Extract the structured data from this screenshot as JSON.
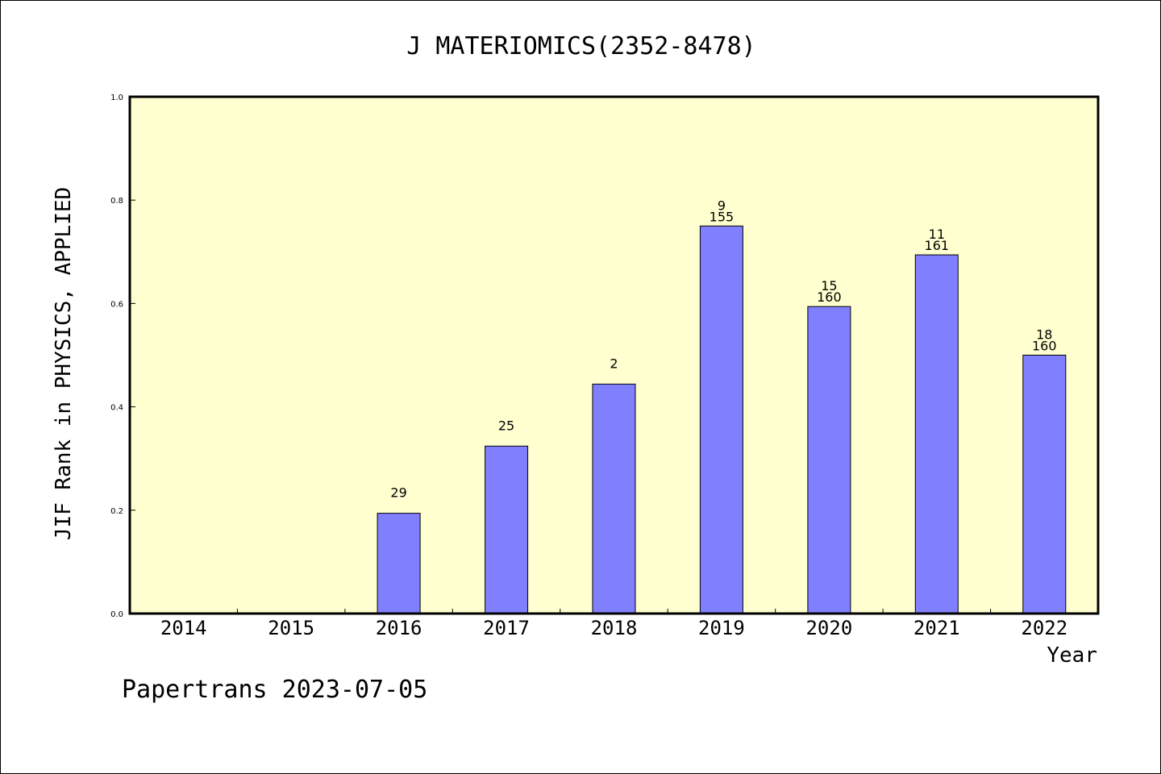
{
  "chart_data": {
    "type": "bar",
    "title": "J MATERIOMICS(2352-8478)",
    "xlabel": "Year",
    "ylabel": "JIF Rank in PHYSICS, APPLIED",
    "ylim": [
      0,
      1.0
    ],
    "yticks": [
      "0.0",
      "0.2",
      "0.4",
      "0.6",
      "0.8",
      "1.0"
    ],
    "categories": [
      "2014",
      "2015",
      "2016",
      "2017",
      "2018",
      "2019",
      "2020",
      "2021",
      "2022"
    ],
    "values": [
      null,
      null,
      0.194,
      0.324,
      0.444,
      0.75,
      0.594,
      0.694,
      0.5
    ],
    "bar_labels": [
      null,
      null,
      [
        "29"
      ],
      [
        "25"
      ],
      [
        "2"
      ],
      [
        "9",
        "155"
      ],
      [
        "15",
        "160"
      ],
      [
        "11",
        "161"
      ],
      [
        "18",
        "160"
      ]
    ],
    "plot_background": "#ffffd0",
    "bar_color": "#8080ff",
    "grid": false
  },
  "footer": {
    "source": "Papertrans 2023-07-05"
  }
}
